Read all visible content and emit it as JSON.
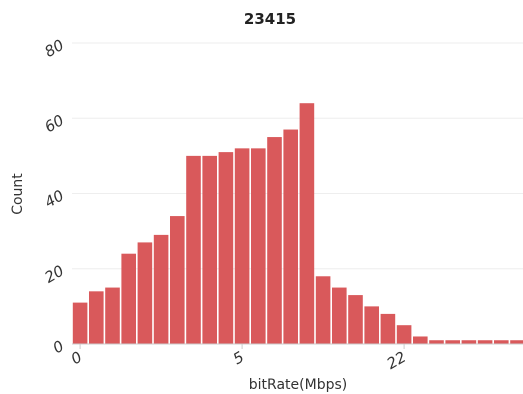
{
  "chart_data": {
    "type": "bar",
    "title": "23415",
    "xlabel": "bitRate(Mbps)",
    "ylabel": "Count",
    "ylim": [
      0,
      80
    ],
    "y_ticks": [
      "0",
      "20",
      "40",
      "60",
      "80"
    ],
    "x_ticks": [
      {
        "label": "0",
        "bin": 0
      },
      {
        "label": "5",
        "bin": 10
      },
      {
        "label": "22",
        "bin": 20
      }
    ],
    "grid": true,
    "bar_color": "#d9595b",
    "values": [
      11,
      14,
      15,
      24,
      27,
      29,
      34,
      50,
      50,
      51,
      52,
      52,
      55,
      57,
      64,
      18,
      15,
      13,
      10,
      8,
      5,
      2,
      1,
      1,
      1,
      1,
      1,
      1
    ]
  }
}
